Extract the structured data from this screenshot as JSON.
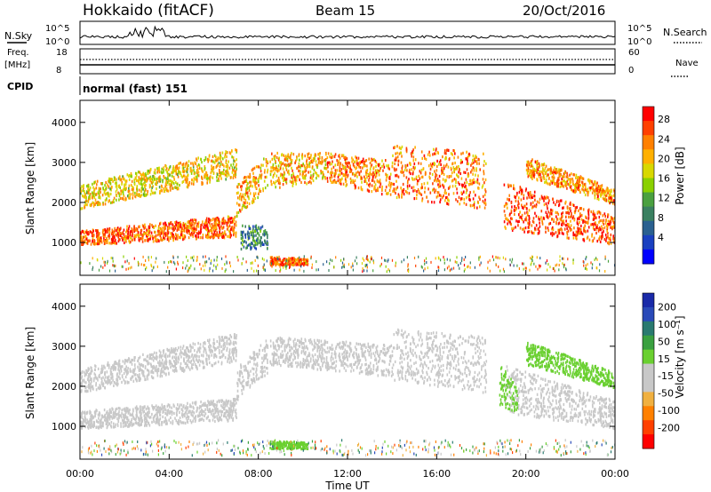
{
  "header": {
    "station": "Hokkaido (fitACF)",
    "beam": "Beam 15",
    "date": "20/Oct/2016"
  },
  "status_panels": {
    "nsky_label": "N.Sky",
    "nsky_ticks": [
      "10^5",
      "10^0"
    ],
    "nsearch_label": "N.Search",
    "nsearch_ticks": [
      "10^5",
      "10^0"
    ],
    "freq_label": "Freq.",
    "freq_unit": "[MHz]",
    "freq_ticks": [
      "18",
      "8"
    ],
    "nave_label": "Nave",
    "nave_ticks": [
      "60",
      "0"
    ],
    "cpid_label": "CPID",
    "cpid_text": "normal (fast) 151"
  },
  "chart_data": [
    {
      "type": "heatmap",
      "name": "power",
      "xlabel": "",
      "ylabel": "Slant Range [km]",
      "x_ticks": [
        "00:00",
        "04:00",
        "08:00",
        "12:00",
        "16:00",
        "20:00",
        "00:00"
      ],
      "x_range_hours": [
        0,
        24
      ],
      "y_ticks": [
        "4000",
        "3000",
        "2000",
        "1000"
      ],
      "y_tick_values": [
        4000,
        3000,
        2000,
        1000
      ],
      "ylim": [
        180,
        4550
      ],
      "colorbar_label": "Power [dB]",
      "colorbar_ticks": [
        "28",
        "24",
        "20",
        "16",
        "12",
        "8",
        "4"
      ],
      "colorbar_colors": [
        "#ff0000",
        "#ff4000",
        "#ff8000",
        "#ffb000",
        "#d8d800",
        "#8ad000",
        "#4aa040",
        "#3a8060",
        "#2a6090",
        "#1a40c0",
        "#0000ff"
      ],
      "bands": [
        {
          "t0": 0.0,
          "t1": 7.0,
          "r0": 900,
          "r1": 1250,
          "r_end0": 1100,
          "r_end1": 1650,
          "level": 26
        },
        {
          "t0": 0.0,
          "t1": 7.0,
          "r0": 1800,
          "r1": 2400,
          "r_end0": 2600,
          "r_end1": 3300,
          "level": 20
        },
        {
          "t0": 7.0,
          "t1": 8.4,
          "r0": 1600,
          "r1": 2400,
          "r_end0": 2300,
          "r_end1": 3200,
          "level": 22
        },
        {
          "t0": 8.5,
          "t1": 11.0,
          "r0": 2300,
          "r1": 3200,
          "r_end0": 2500,
          "r_end1": 3200,
          "level": 22
        },
        {
          "t0": 11.0,
          "t1": 14.0,
          "r0": 2500,
          "r1": 3200,
          "r_end0": 2100,
          "r_end1": 3000,
          "level": 25
        },
        {
          "t0": 14.0,
          "t1": 18.2,
          "r0": 2100,
          "r1": 3400,
          "r_end0": 1800,
          "r_end1": 3200,
          "level": 25
        },
        {
          "t0": 19.0,
          "t1": 24.0,
          "r0": 1300,
          "r1": 2500,
          "r_end0": 900,
          "r_end1": 1600,
          "level": 27
        },
        {
          "t0": 20.0,
          "t1": 24.0,
          "r0": 2600,
          "r1": 3100,
          "r_end0": 1900,
          "r_end1": 2300,
          "level": 24
        },
        {
          "t0": 8.5,
          "t1": 10.2,
          "r0": 400,
          "r1": 600,
          "r_end0": 400,
          "r_end1": 560,
          "level": 26
        },
        {
          "t0": 7.2,
          "t1": 8.4,
          "r0": 800,
          "r1": 1400,
          "r_end0": 800,
          "r_end1": 1400,
          "level": 10
        }
      ]
    },
    {
      "type": "heatmap",
      "name": "velocity",
      "xlabel": "Time UT",
      "ylabel": "Slant Range [km]",
      "x_ticks": [
        "00:00",
        "04:00",
        "08:00",
        "12:00",
        "16:00",
        "20:00",
        "00:00"
      ],
      "x_range_hours": [
        0,
        24
      ],
      "y_ticks": [
        "4000",
        "3000",
        "2000",
        "1000"
      ],
      "y_tick_values": [
        4000,
        3000,
        2000,
        1000
      ],
      "ylim": [
        180,
        4550
      ],
      "colorbar_label": "Velocity [m s⁻¹]",
      "colorbar_ticks": [
        "200",
        "100",
        "50",
        "15",
        "-15",
        "-50",
        "-100",
        "-200"
      ],
      "colorbar_colors": [
        "#1a2aa8",
        "#2a4ab8",
        "#2a7a70",
        "#3aa040",
        "#6ad030",
        "#c8c8c8",
        "#c8c8c8",
        "#f0b040",
        "#ff8000",
        "#ff4000",
        "#ff0000"
      ],
      "bands": [
        {
          "t0": 0.0,
          "t1": 7.0,
          "r0": 900,
          "r1": 1350,
          "r_end0": 1100,
          "r_end1": 1650,
          "level": 0
        },
        {
          "t0": 0.0,
          "t1": 7.0,
          "r0": 1800,
          "r1": 2400,
          "r_end0": 2600,
          "r_end1": 3300,
          "level": -30
        },
        {
          "t0": 7.0,
          "t1": 8.4,
          "r0": 1600,
          "r1": 2400,
          "r_end0": 2300,
          "r_end1": 3200,
          "level": 0
        },
        {
          "t0": 8.5,
          "t1": 14.0,
          "r0": 2500,
          "r1": 3200,
          "r_end0": 2200,
          "r_end1": 3000,
          "level": 0
        },
        {
          "t0": 14.0,
          "t1": 18.2,
          "r0": 2100,
          "r1": 3400,
          "r_end0": 1800,
          "r_end1": 3200,
          "level": 0
        },
        {
          "t0": 19.0,
          "t1": 24.0,
          "r0": 1300,
          "r1": 2500,
          "r_end0": 900,
          "r_end1": 1600,
          "level": 0
        },
        {
          "t0": 20.0,
          "t1": 24.0,
          "r0": 2500,
          "r1": 3100,
          "r_end0": 1900,
          "r_end1": 2300,
          "level": 30
        },
        {
          "t0": 8.5,
          "t1": 10.2,
          "r0": 400,
          "r1": 600,
          "r_end0": 400,
          "r_end1": 560,
          "level": 30
        },
        {
          "t0": 18.8,
          "t1": 19.6,
          "r0": 1500,
          "r1": 2600,
          "r_end0": 1300,
          "r_end1": 1900,
          "level": 35
        }
      ]
    }
  ]
}
